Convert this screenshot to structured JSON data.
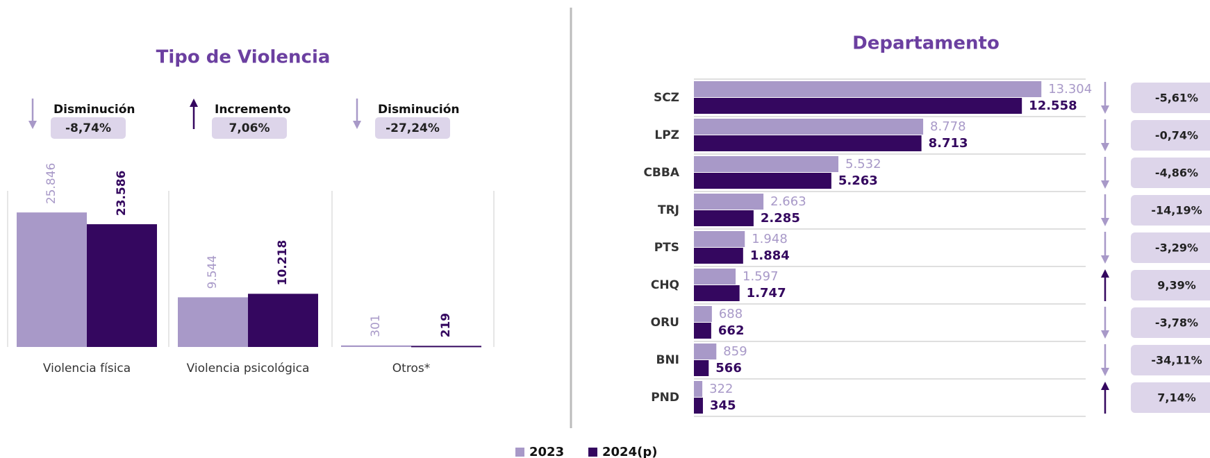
{
  "chart_data": [
    {
      "type": "bar",
      "title": "Tipo de Violencia",
      "categories": [
        "Violencia física",
        "Violencia psicológica",
        "Otros*"
      ],
      "series": [
        {
          "name": "2023",
          "color": "#a899c8",
          "values": [
            25846,
            9544,
            301
          ],
          "value_labels": [
            "25.846",
            "9.544",
            "301"
          ]
        },
        {
          "name": "2024(p)",
          "color": "#34075f",
          "values": [
            23586,
            10218,
            219
          ],
          "value_labels": [
            "23.586",
            "10.218",
            "219"
          ]
        }
      ],
      "change_titles": [
        "Disminución",
        "Incremento",
        "Disminución"
      ],
      "changes": [
        -8.74,
        7.06,
        -27.24
      ],
      "change_labels": [
        "-8,74%",
        "7,06%",
        "-27,24%"
      ],
      "ylim": [
        0,
        30000
      ]
    },
    {
      "type": "hbar",
      "title": "Departamento",
      "categories": [
        "SCZ",
        "LPZ",
        "CBBA",
        "TRJ",
        "PTS",
        "CHQ",
        "ORU",
        "BNI",
        "PND"
      ],
      "series": [
        {
          "name": "2023",
          "color": "#a899c8",
          "values": [
            13304,
            8778,
            5532,
            2663,
            1948,
            1597,
            688,
            859,
            322
          ],
          "value_labels": [
            "13.304",
            "8.778",
            "5.532",
            "2.663",
            "1.948",
            "1.597",
            "688",
            "859",
            "322"
          ]
        },
        {
          "name": "2024(p)",
          "color": "#34075f",
          "values": [
            12558,
            8713,
            5263,
            2285,
            1884,
            1747,
            662,
            566,
            345
          ],
          "value_labels": [
            "12.558",
            "8.713",
            "5.263",
            "2.285",
            "1.884",
            "1.747",
            "662",
            "566",
            "345"
          ]
        }
      ],
      "changes": [
        -5.61,
        -0.74,
        -4.86,
        -14.19,
        -3.29,
        9.39,
        -3.78,
        -34.11,
        7.14
      ],
      "change_labels": [
        "-5,61%",
        "-0,74%",
        "-4,86%",
        "-14,19%",
        "-3,29%",
        "9,39%",
        "-3,78%",
        "-34,11%",
        "7,14%"
      ],
      "xlim": [
        0,
        15000
      ]
    }
  ]
}
